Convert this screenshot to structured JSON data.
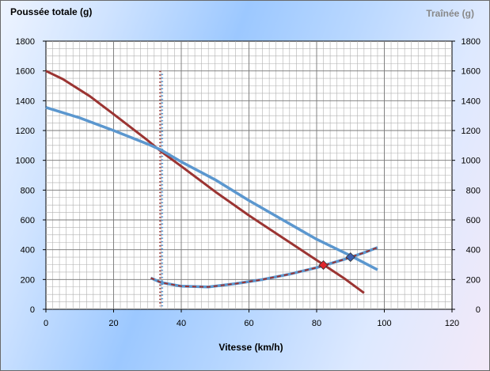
{
  "chart_data": {
    "type": "line",
    "ylabel": "Poussée totale (g)",
    "y2label": "Traînée (g)",
    "xlabel": "Vitesse (km/h)",
    "xlim": [
      0,
      120
    ],
    "ylim": [
      0,
      1800
    ],
    "y2lim": [
      0,
      1800
    ],
    "x_ticks": [
      0,
      20,
      40,
      60,
      80,
      100,
      120
    ],
    "y_ticks": [
      0,
      200,
      400,
      600,
      800,
      1000,
      1200,
      1400,
      1600,
      1800
    ],
    "grid": true,
    "colors": {
      "red": "#9b3432",
      "blue": "#5b97cf",
      "dotted": "#9a3c3c",
      "red_marker": "#e0262c",
      "blue_marker": "#3b5fb0"
    },
    "series": [
      {
        "values_x": [
          0,
          5,
          13,
          20,
          30,
          34,
          40,
          50,
          60,
          70,
          80,
          88,
          94
        ],
        "values_y": [
          1600,
          1545,
          1430,
          1310,
          1135,
          1060,
          960,
          790,
          630,
          480,
          330,
          210,
          110
        ]
      },
      {
        "values_x": [
          0,
          10,
          20,
          30,
          34,
          40,
          50,
          60,
          70,
          80,
          90,
          98
        ],
        "values_y": [
          1355,
          1285,
          1200,
          1110,
          1070,
          990,
          870,
          730,
          600,
          470,
          360,
          265
        ]
      },
      {
        "values_x": [
          31,
          34,
          40,
          48,
          56,
          64,
          72,
          80,
          88,
          94,
          98
        ],
        "values_y": [
          210,
          180,
          155,
          150,
          172,
          200,
          236,
          280,
          334,
          380,
          415
        ]
      }
    ],
    "vertical_line": {
      "x": 34,
      "y_from": 20,
      "y_to": 1600
    },
    "markers": [
      {
        "x": 82,
        "y": 297
      },
      {
        "x": 90,
        "y": 350
      }
    ]
  }
}
